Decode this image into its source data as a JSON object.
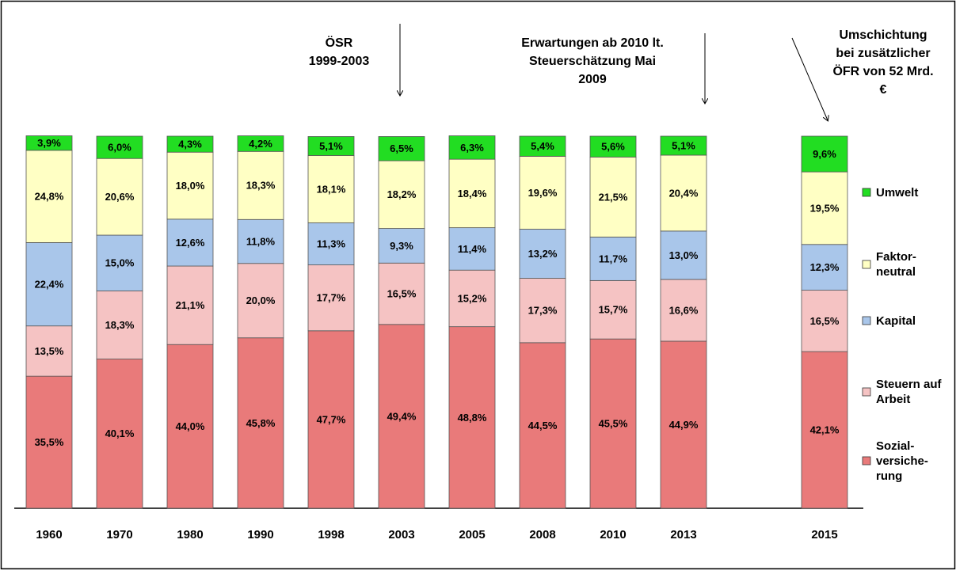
{
  "chart_data": {
    "type": "stacked_bar",
    "categories": [
      "1960",
      "1970",
      "1980",
      "1990",
      "1998",
      "2003",
      "2005",
      "2008",
      "2010",
      "2013",
      null,
      "2015"
    ],
    "series": [
      {
        "name": "Sozial-versiche-rung",
        "color": "#e97a7a",
        "values": [
          35.5,
          40.1,
          44.0,
          45.8,
          47.7,
          49.4,
          48.8,
          44.5,
          45.5,
          44.9,
          null,
          42.1
        ],
        "value_labels": [
          "35,5%",
          "40,1%",
          "44,0%",
          "45,8%",
          "47,7%",
          "49,4%",
          "48,8%",
          "44,5%",
          "45,5%",
          "44,9%",
          null,
          "42,1%"
        ]
      },
      {
        "name": "Steuern auf Arbeit",
        "color": "#f5c3c3",
        "values": [
          13.5,
          18.3,
          21.1,
          20.0,
          17.7,
          16.5,
          15.2,
          17.3,
          15.7,
          16.6,
          null,
          16.5
        ],
        "value_labels": [
          "13,5%",
          "18,3%",
          "21,1%",
          "20,0%",
          "17,7%",
          "16,5%",
          "15,2%",
          "17,3%",
          "15,7%",
          "16,6%",
          null,
          "16,5%"
        ]
      },
      {
        "name": "Kapital",
        "color": "#a9c6ea",
        "values": [
          22.4,
          15.0,
          12.6,
          11.8,
          11.3,
          9.3,
          11.4,
          13.2,
          11.7,
          13.0,
          null,
          12.3
        ],
        "value_labels": [
          "22,4%",
          "15,0%",
          "12,6%",
          "11,8%",
          "11,3%",
          "9,3%",
          "11,4%",
          "13,2%",
          "11,7%",
          "13,0%",
          null,
          "12,3%"
        ]
      },
      {
        "name": "Faktor-neutral",
        "color": "#ffffc4",
        "values": [
          24.8,
          20.6,
          18.0,
          18.3,
          18.1,
          18.2,
          18.4,
          19.6,
          21.5,
          20.4,
          null,
          19.5
        ],
        "value_labels": [
          "24,8%",
          "20,6%",
          "18,0%",
          "18,3%",
          "18,1%",
          "18,2%",
          "18,4%",
          "19,6%",
          "21,5%",
          "20,4%",
          null,
          "19,5%"
        ]
      },
      {
        "name": "Umwelt",
        "color": "#22dd22",
        "values": [
          3.9,
          6.0,
          4.3,
          4.2,
          5.1,
          6.5,
          6.3,
          5.4,
          5.6,
          5.1,
          null,
          9.6
        ],
        "value_labels": [
          "3,9%",
          "6,0%",
          "4,3%",
          "4,2%",
          "5,1%",
          "6,5%",
          "6,3%",
          "5,4%",
          "5,6%",
          "5,1%",
          null,
          "9,6%"
        ]
      }
    ],
    "annotations": [
      [
        "ÖSR",
        "1999-2003"
      ],
      [
        "Erwartungen ab 2010 lt.",
        "Steuerschätzung Mai",
        "2009"
      ],
      [
        "Umschichtung",
        "bei zusätzlicher",
        "ÖFR von 52 Mrd.",
        "€"
      ]
    ],
    "legend": "right"
  }
}
